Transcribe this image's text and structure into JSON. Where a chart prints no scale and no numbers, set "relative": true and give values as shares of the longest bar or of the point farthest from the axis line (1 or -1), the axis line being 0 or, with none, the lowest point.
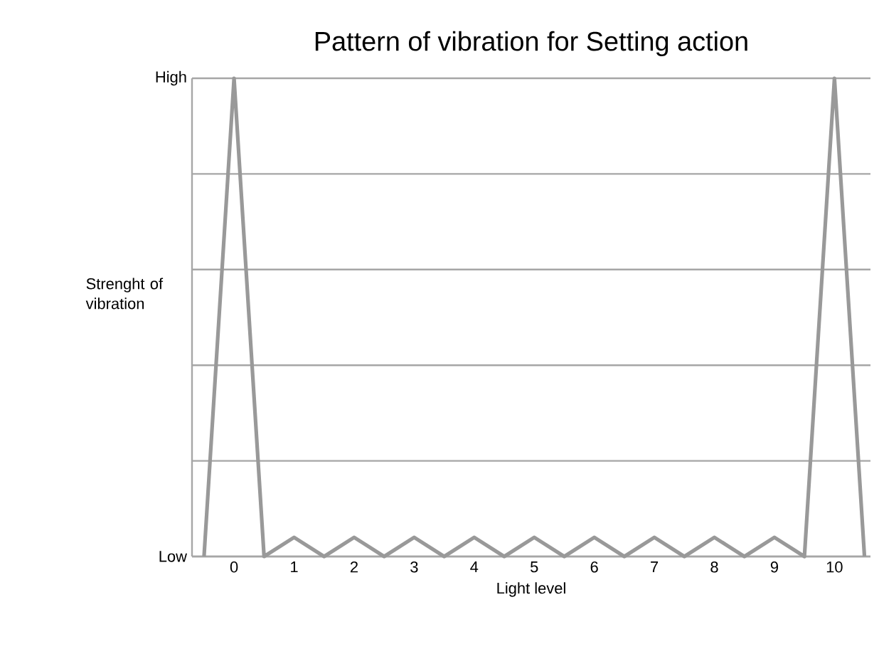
{
  "chart_data": {
    "type": "line",
    "title": "Pattern of vibration for Setting action",
    "xlabel": "Light level",
    "ylabel": "Strenght of vibration",
    "x": [
      -0.5,
      0,
      0.5,
      1,
      1.5,
      2,
      2.5,
      3,
      3.5,
      4,
      4.5,
      5,
      5.5,
      6,
      6.5,
      7,
      7.5,
      8,
      8.5,
      9,
      9.5,
      10,
      10.5
    ],
    "series": [
      {
        "color": "#999999",
        "values": [
          0,
          1,
          0,
          0.04,
          0,
          0.04,
          0,
          0.04,
          0,
          0.04,
          0,
          0.04,
          0,
          0.04,
          0,
          0.04,
          0,
          0.04,
          0,
          0.04,
          0,
          1,
          0
        ]
      }
    ],
    "xlim": [
      -0.7,
      10.6
    ],
    "xticks": [
      0,
      1,
      2,
      3,
      4,
      5,
      6,
      7,
      8,
      9,
      10
    ],
    "relative": true,
    "annotations": [
      "Low",
      "High"
    ],
    "grid": "y",
    "marker": "none",
    "line_style": "solid"
  }
}
